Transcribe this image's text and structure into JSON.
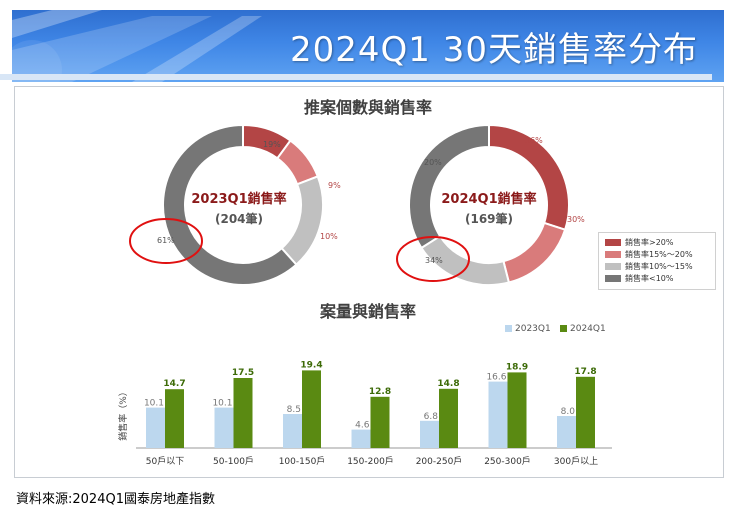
{
  "header": {
    "title": "2024Q1 30天銷售率分布"
  },
  "footer": {
    "source": "資料來源:2024Q1國泰房地產指數"
  },
  "colors": {
    "gt20": "#b34545",
    "p15_20": "#d97b7b",
    "p10_15": "#c0c0c0",
    "lt10": "#767676",
    "s2023": "#bcd7ee",
    "s2024": "#5a8a12"
  },
  "chart_data": [
    {
      "type": "pie",
      "title": "推案個數與銷售率",
      "charts": [
        {
          "center_label": "2023Q1銷售率",
          "count_label": "(204筆)",
          "slices": [
            {
              "name": "銷售率>20%",
              "value": 10,
              "label": "10%"
            },
            {
              "name": "銷售率15%～20%",
              "value": 9,
              "label": "9%"
            },
            {
              "name": "銷售率10%～15%",
              "value": 19,
              "label": "19%"
            },
            {
              "name": "銷售率<10%",
              "value": 61,
              "label": "61%"
            }
          ]
        },
        {
          "center_label": "2024Q1銷售率",
          "count_label": "(169筆)",
          "slices": [
            {
              "name": "銷售率>20%",
              "value": 30,
              "label": "30%"
            },
            {
              "name": "銷售率15%～20%",
              "value": 16,
              "label": "16%"
            },
            {
              "name": "銷售率10%～15%",
              "value": 20,
              "label": "20%"
            },
            {
              "name": "銷售率<10%",
              "value": 34,
              "label": "34%"
            }
          ]
        }
      ],
      "legend": [
        "銷售率>20%",
        "銷售率15%～20%",
        "銷售率10%～15%",
        "銷售率<10%"
      ]
    },
    {
      "type": "bar",
      "title": "案量與銷售率",
      "ylabel": "銷售率（%）",
      "categories": [
        "50戶以下",
        "50-100戶",
        "100-150戶",
        "150-200戶",
        "200-250戶",
        "250-300戶",
        "300戶以上"
      ],
      "series": [
        {
          "name": "2023Q1",
          "values": [
            10.1,
            10.1,
            8.5,
            4.6,
            6.8,
            16.6,
            8.0
          ],
          "labels": [
            "10.1",
            "10.1",
            "8.5",
            "4.6",
            "6.8",
            "16.6",
            "8.0"
          ]
        },
        {
          "name": "2024Q1",
          "values": [
            14.7,
            17.5,
            19.4,
            12.8,
            14.8,
            18.9,
            17.8
          ],
          "labels": [
            "14.7",
            "17.5",
            "19.4",
            "12.8",
            "14.8",
            "18.9",
            "17.8"
          ]
        }
      ],
      "ylim": [
        0,
        20
      ]
    }
  ]
}
